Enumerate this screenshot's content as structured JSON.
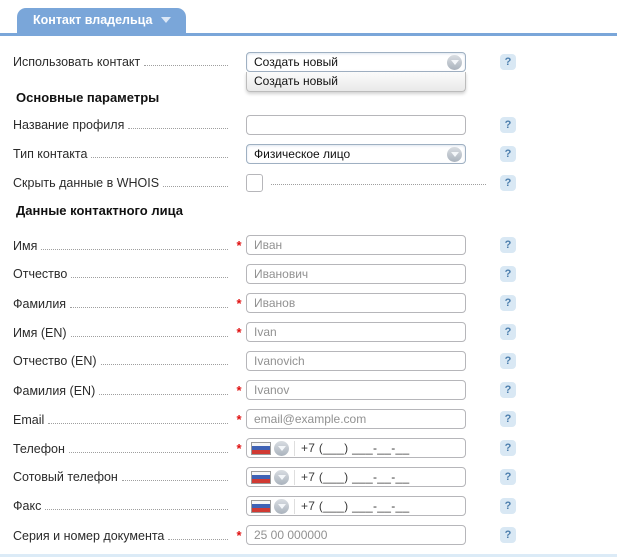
{
  "tab": {
    "label": "Контакт владельца"
  },
  "required_mark": "*",
  "help_label": "?",
  "sections": {
    "basic": "Основные параметры",
    "person": "Данные контактного лица"
  },
  "form": {
    "use_contact": {
      "label": "Использовать контакт",
      "value": "Создать новый",
      "menu_option": "Создать новый"
    },
    "profile_name": {
      "label": "Название профиля",
      "value": ""
    },
    "contact_type": {
      "label": "Тип контакта",
      "value": "Физическое лицо"
    },
    "hide_whois": {
      "label": "Скрыть данные в WHOIS",
      "checked": false
    },
    "first_name": {
      "label": "Имя",
      "placeholder": "Иван",
      "required": true
    },
    "middle_name": {
      "label": "Отчество",
      "placeholder": "Иванович",
      "required": false
    },
    "last_name": {
      "label": "Фамилия",
      "placeholder": "Иванов",
      "required": true
    },
    "first_name_en": {
      "label": "Имя (EN)",
      "placeholder": "Ivan",
      "required": true
    },
    "middle_name_en": {
      "label": "Отчество (EN)",
      "placeholder": "Ivanovich",
      "required": false
    },
    "last_name_en": {
      "label": "Фамилия (EN)",
      "placeholder": "Ivanov",
      "required": true
    },
    "email": {
      "label": "Email",
      "placeholder": "email@example.com",
      "required": true
    },
    "phone": {
      "label": "Телефон",
      "mask": "+7 (___) ___-__-__",
      "flag": "russia",
      "required": true
    },
    "mobile": {
      "label": "Сотовый телефон",
      "mask": "+7 (___) ___-__-__",
      "flag": "russia",
      "required": false
    },
    "fax": {
      "label": "Факс",
      "mask": "+7 (___) ___-__-__",
      "flag": "russia",
      "required": false
    },
    "document": {
      "label": "Серия и номер документа",
      "placeholder": "25 00 000000",
      "required": true
    }
  },
  "colors": {
    "accent_blue": "#7aa6d9",
    "help_bg": "#d9e8f4",
    "help_fg": "#4c7ead",
    "required_red": "#e01010"
  }
}
